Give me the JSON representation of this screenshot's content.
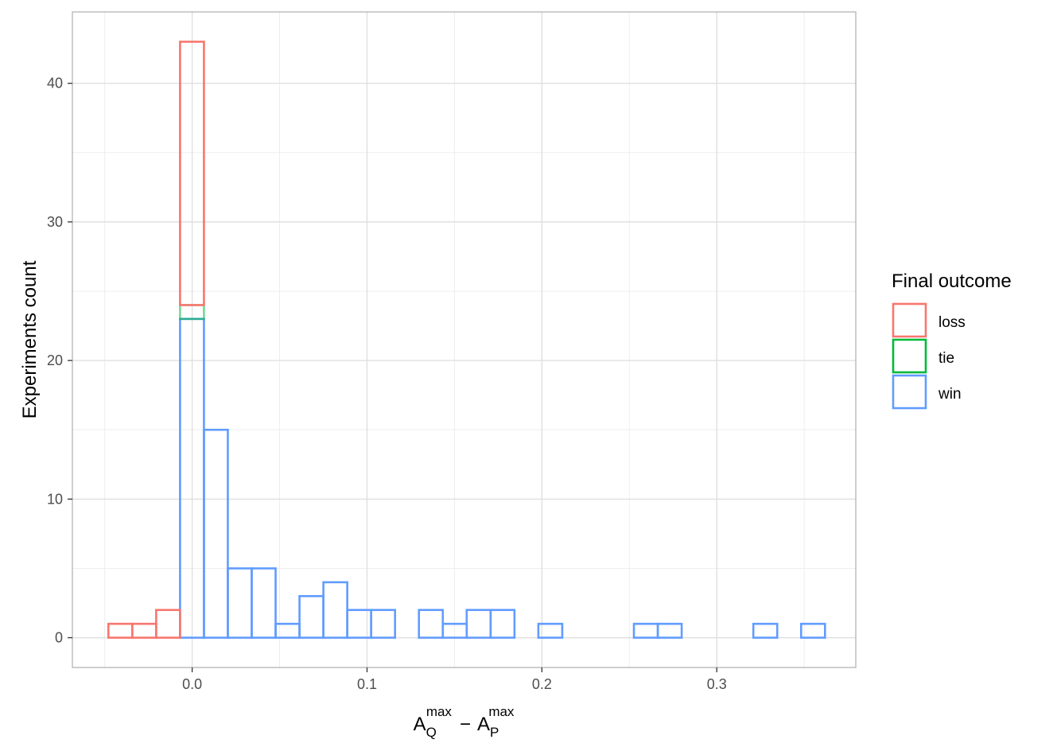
{
  "chart_data": {
    "type": "bar",
    "subtype": "stacked-histogram-outline",
    "title": "",
    "xlabel": {
      "base1": "A",
      "sub1": "Q",
      "sup1": "max",
      "op": "−",
      "base2": "A",
      "sub2": "P",
      "sup2": "max"
    },
    "ylabel": "Experiments count",
    "xlim": [
      -0.0685,
      0.3795
    ],
    "ylim": [
      -2.15,
      45.15
    ],
    "x_major_ticks": [
      {
        "value": 0.0,
        "label": "0.0"
      },
      {
        "value": 0.1,
        "label": "0.1"
      },
      {
        "value": 0.2,
        "label": "0.2"
      },
      {
        "value": 0.3,
        "label": "0.3"
      }
    ],
    "x_minor_ticks": [
      -0.05,
      0.05,
      0.15,
      0.25,
      0.35
    ],
    "y_major_ticks": [
      {
        "value": 0,
        "label": "0"
      },
      {
        "value": 10,
        "label": "10"
      },
      {
        "value": 20,
        "label": "20"
      },
      {
        "value": 30,
        "label": "30"
      },
      {
        "value": 40,
        "label": "40"
      }
    ],
    "y_minor_ticks": [
      5,
      15,
      25,
      35
    ],
    "grid": true,
    "legend": {
      "title": "Final outcome",
      "position": "right",
      "entries": [
        {
          "label": "loss",
          "color": "#F8766D"
        },
        {
          "label": "tie",
          "color": "#00BA38"
        },
        {
          "label": "win",
          "color": "#619CFF"
        }
      ]
    },
    "bins": {
      "start": -0.0479,
      "width": 0.01366,
      "count": 30
    },
    "series": [
      {
        "name": "win",
        "color": "#619CFF",
        "values": [
          0,
          0,
          0,
          23,
          15,
          5,
          5,
          1,
          3,
          4,
          2,
          2,
          0,
          2,
          1,
          2,
          2,
          0,
          1,
          0,
          0,
          0,
          1,
          1,
          0,
          0,
          0,
          1,
          0,
          1
        ]
      },
      {
        "name": "tie",
        "color": "#00BA38",
        "values": [
          0,
          0,
          0,
          1,
          0,
          0,
          0,
          0,
          0,
          0,
          0,
          0,
          0,
          0,
          0,
          0,
          0,
          0,
          0,
          0,
          0,
          0,
          0,
          0,
          0,
          0,
          0,
          0,
          0,
          0
        ]
      },
      {
        "name": "loss",
        "color": "#F8766D",
        "values": [
          1,
          1,
          2,
          19,
          0,
          0,
          0,
          0,
          0,
          0,
          0,
          0,
          0,
          0,
          0,
          0,
          0,
          0,
          0,
          0,
          0,
          0,
          0,
          0,
          0,
          0,
          0,
          0,
          0,
          0
        ]
      }
    ]
  }
}
